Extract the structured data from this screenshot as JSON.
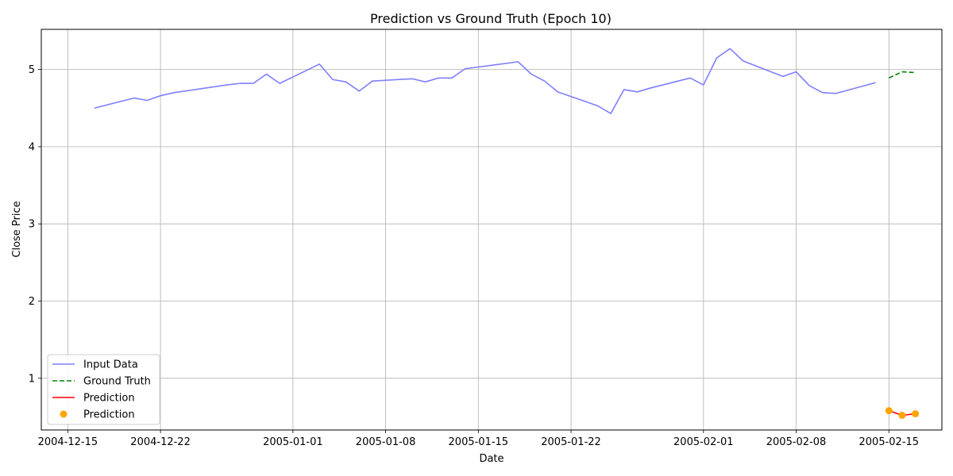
{
  "chart_data": {
    "type": "line",
    "title": "Prediction vs Ground Truth (Epoch 10)",
    "xlabel": "Date",
    "ylabel": "Close Price",
    "x_ticks": [
      "2004-12-15",
      "2004-12-22",
      "2005-01-01",
      "2005-01-08",
      "2005-01-15",
      "2005-01-22",
      "2005-02-01",
      "2005-02-08",
      "2005-02-15"
    ],
    "y_ticks": [
      "1",
      "2",
      "3",
      "4",
      "5"
    ],
    "xlim": [
      "2004-12-13",
      "2005-02-19"
    ],
    "ylim": [
      0.33,
      5.52
    ],
    "grid": true,
    "legend_position": "lower-left",
    "series": [
      {
        "name": "Input Data",
        "style": "solid",
        "color": "#7f7fff",
        "x": [
          "2004-12-17",
          "2004-12-20",
          "2004-12-21",
          "2004-12-22",
          "2004-12-23",
          "2004-12-27",
          "2004-12-28",
          "2004-12-29",
          "2004-12-30",
          "2004-12-31",
          "2005-01-03",
          "2005-01-04",
          "2005-01-05",
          "2005-01-06",
          "2005-01-07",
          "2005-01-10",
          "2005-01-11",
          "2005-01-12",
          "2005-01-13",
          "2005-01-14",
          "2005-01-18",
          "2005-01-19",
          "2005-01-20",
          "2005-01-21",
          "2005-01-24",
          "2005-01-25",
          "2005-01-26",
          "2005-01-27",
          "2005-01-28",
          "2005-01-31",
          "2005-02-01",
          "2005-02-02",
          "2005-02-03",
          "2005-02-04",
          "2005-02-07",
          "2005-02-08",
          "2005-02-09",
          "2005-02-10",
          "2005-02-11",
          "2005-02-14"
        ],
        "y": [
          4.5,
          4.63,
          4.6,
          4.66,
          4.7,
          4.8,
          4.82,
          4.82,
          4.94,
          4.82,
          5.07,
          4.87,
          4.84,
          4.72,
          4.85,
          4.88,
          4.84,
          4.89,
          4.89,
          5.01,
          5.1,
          4.94,
          4.85,
          4.71,
          4.53,
          4.43,
          4.74,
          4.71,
          4.76,
          4.89,
          4.8,
          5.15,
          5.27,
          5.11,
          4.91,
          4.97,
          4.79,
          4.7,
          4.69,
          4.83
        ]
      },
      {
        "name": "Ground Truth",
        "style": "dashed",
        "color": "#008000",
        "x": [
          "2005-02-15",
          "2005-02-16",
          "2005-02-17"
        ],
        "y": [
          4.89,
          4.97,
          4.96
        ]
      },
      {
        "name": "Prediction",
        "style": "solid",
        "color": "#ff0000",
        "x": [
          "2005-02-15",
          "2005-02-16",
          "2005-02-17"
        ],
        "y": [
          0.58,
          0.52,
          0.54
        ]
      },
      {
        "name": "Prediction",
        "style": "scatter",
        "color": "#ffa500",
        "x": [
          "2005-02-15",
          "2005-02-16",
          "2005-02-17"
        ],
        "y": [
          0.58,
          0.52,
          0.54
        ]
      }
    ]
  }
}
